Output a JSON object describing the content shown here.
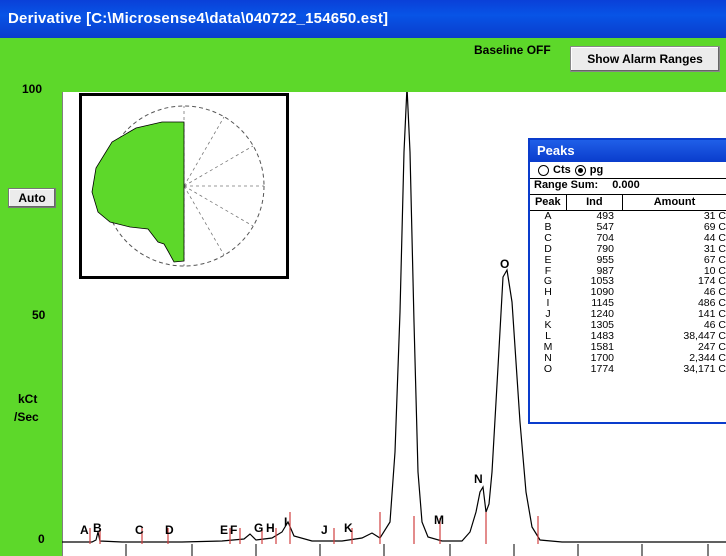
{
  "window": {
    "title": "Derivative [C:\\Microsense4\\data\\040722_154650.est]"
  },
  "toolbar": {
    "baseline_label": "Baseline OFF",
    "alarm_button": "Show Alarm Ranges",
    "auto_button": "Auto"
  },
  "yaxis": {
    "tick_100": "100",
    "tick_50": "50",
    "tick_0": "0",
    "label_line1": "kCt",
    "label_line2": "/Sec"
  },
  "peak_markers": [
    "A",
    "B",
    "C",
    "D",
    "E",
    "F",
    "G",
    "H",
    "I",
    "J",
    "K",
    "M",
    "N",
    "O"
  ],
  "peaks_window": {
    "title": "Peaks",
    "radio_cts": "Cts",
    "radio_pg": "pg",
    "selected_unit": "pg",
    "range_sum_label": "Range Sum:",
    "range_sum_value": "0.000",
    "columns": [
      "Peak",
      "Ind",
      "Amount"
    ],
    "rows": [
      {
        "peak": "A",
        "ind": "493",
        "amount": "31 C"
      },
      {
        "peak": "B",
        "ind": "547",
        "amount": "69 C"
      },
      {
        "peak": "C",
        "ind": "704",
        "amount": "44 C"
      },
      {
        "peak": "D",
        "ind": "790",
        "amount": "31 C"
      },
      {
        "peak": "E",
        "ind": "955",
        "amount": "67 C"
      },
      {
        "peak": "F",
        "ind": "987",
        "amount": "10 C"
      },
      {
        "peak": "G",
        "ind": "1053",
        "amount": "174 C"
      },
      {
        "peak": "H",
        "ind": "1090",
        "amount": "46 C"
      },
      {
        "peak": "I",
        "ind": "1145",
        "amount": "486 C"
      },
      {
        "peak": "J",
        "ind": "1240",
        "amount": "141 C"
      },
      {
        "peak": "K",
        "ind": "1305",
        "amount": "46 C"
      },
      {
        "peak": "L",
        "ind": "1483",
        "amount": "38,447 C"
      },
      {
        "peak": "M",
        "ind": "1581",
        "amount": "247 C"
      },
      {
        "peak": "N",
        "ind": "1700",
        "amount": "2,344 C"
      },
      {
        "peak": "O",
        "ind": "1774",
        "amount": "34,171 C"
      }
    ]
  },
  "colors": {
    "background": "#5dd82a",
    "titlebar": "#0a40d8",
    "marker": "#d04040",
    "trace": "#000000",
    "inset_fill": "#5dd82a"
  }
}
